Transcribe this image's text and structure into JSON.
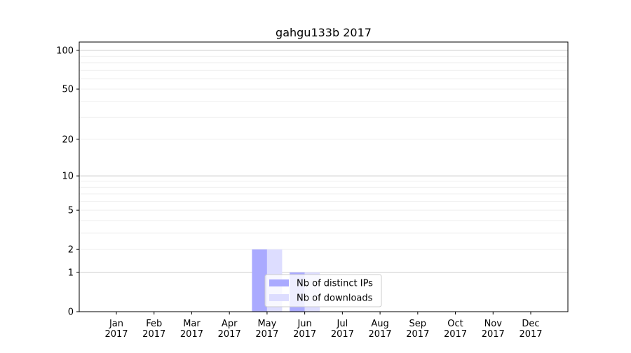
{
  "chart_data": {
    "type": "bar",
    "title": "gahgu133b 2017",
    "xlabel": "",
    "ylabel": "",
    "yscale": "symlog",
    "ylim": [
      0,
      116
    ],
    "yticks": [
      0,
      1,
      2,
      5,
      10,
      20,
      50,
      100
    ],
    "ytick_labels": [
      "0",
      "1",
      "2",
      "5",
      "10",
      "20",
      "50",
      "100"
    ],
    "grid": true,
    "categories": [
      "Jan\n2017",
      "Feb\n2017",
      "Mar\n2017",
      "Apr\n2017",
      "May\n2017",
      "Jun\n2017",
      "Jul\n2017",
      "Aug\n2017",
      "Sep\n2017",
      "Oct\n2017",
      "Nov\n2017",
      "Dec\n2017"
    ],
    "category_lines": [
      [
        "Jan",
        "2017"
      ],
      [
        "Feb",
        "2017"
      ],
      [
        "Mar",
        "2017"
      ],
      [
        "Apr",
        "2017"
      ],
      [
        "May",
        "2017"
      ],
      [
        "Jun",
        "2017"
      ],
      [
        "Jul",
        "2017"
      ],
      [
        "Aug",
        "2017"
      ],
      [
        "Sep",
        "2017"
      ],
      [
        "Oct",
        "2017"
      ],
      [
        "Nov",
        "2017"
      ],
      [
        "Dec",
        "2017"
      ]
    ],
    "series": [
      {
        "name": "Nb of distinct IPs",
        "color": "#aaaaff",
        "values": [
          0,
          0,
          0,
          0,
          2,
          1,
          0,
          0,
          0,
          0,
          0,
          0
        ]
      },
      {
        "name": "Nb of downloads",
        "color": "#ddddff",
        "values": [
          0,
          0,
          0,
          0,
          2,
          1,
          0,
          0,
          0,
          0,
          0,
          0
        ]
      }
    ],
    "legend_position": "lower-center"
  }
}
